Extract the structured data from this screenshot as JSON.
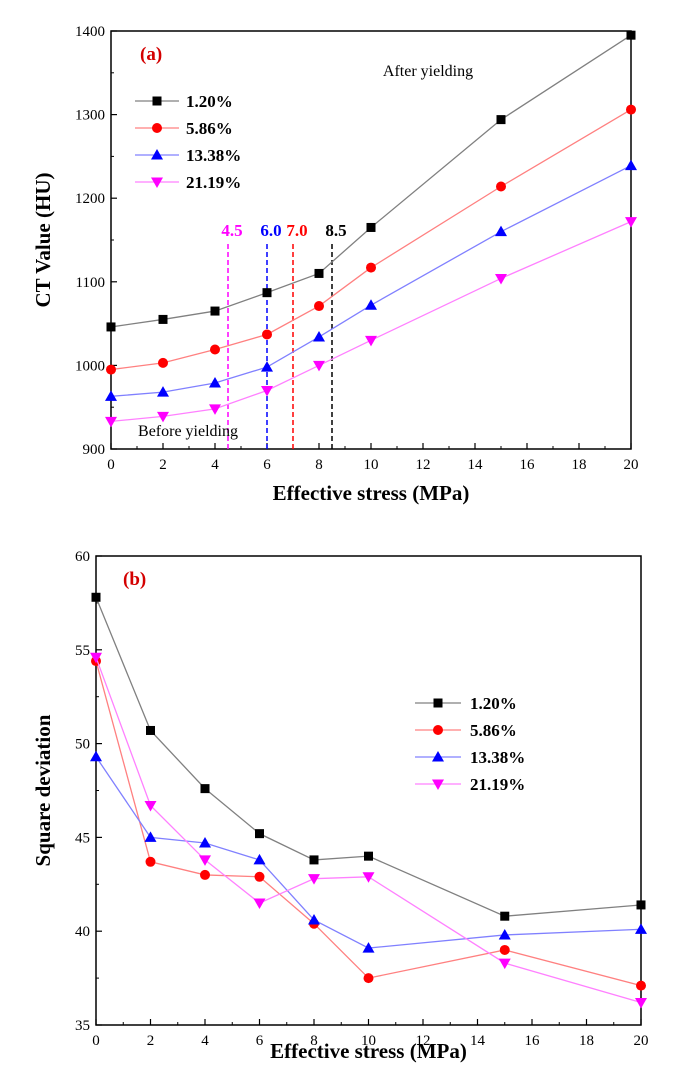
{
  "chart_data": [
    {
      "type": "line",
      "panel_label": "(a)",
      "xlabel": "Effective stress (MPa)",
      "ylabel": "CT Value (HU)",
      "xlim": [
        0,
        20
      ],
      "ylim": [
        900,
        1400
      ],
      "xticks": [
        0,
        2,
        4,
        6,
        8,
        10,
        12,
        14,
        16,
        18,
        20
      ],
      "yticks": [
        900,
        1000,
        1100,
        1200,
        1300,
        1400
      ],
      "x": [
        0,
        2,
        4,
        6,
        8,
        10,
        15,
        20
      ],
      "series": [
        {
          "name": "1.20%",
          "color": "#000000",
          "line_color": "#808080",
          "marker": "square",
          "values": [
            1046,
            1055,
            1065,
            1087,
            1110,
            1165,
            1294,
            1395
          ]
        },
        {
          "name": "5.86%",
          "color": "#ff0000",
          "line_color": "#ff8080",
          "marker": "circle",
          "values": [
            995,
            1003,
            1019,
            1037,
            1071,
            1117,
            1214,
            1306
          ]
        },
        {
          "name": "13.38%",
          "color": "#0000ff",
          "line_color": "#8080ff",
          "marker": "triangle-up",
          "values": [
            963,
            968,
            979,
            998,
            1034,
            1072,
            1160,
            1239
          ]
        },
        {
          "name": "21.19%",
          "color": "#ff00ff",
          "line_color": "#ff80ff",
          "marker": "triangle-down",
          "values": [
            933,
            939,
            948,
            970,
            1000,
            1030,
            1104,
            1172
          ]
        }
      ],
      "vlines": [
        {
          "x": 4.5,
          "label": "4.5",
          "color": "#ff00ff"
        },
        {
          "x": 6.0,
          "label": "6.0",
          "color": "#0000ff"
        },
        {
          "x": 7.0,
          "label": "7.0",
          "color": "#ff0000"
        },
        {
          "x": 8.5,
          "label": "8.5",
          "color": "#000000"
        }
      ],
      "annotations": {
        "after": "After yielding",
        "before": "Before yielding"
      },
      "legend_position": "top-left"
    },
    {
      "type": "line",
      "panel_label": "(b)",
      "xlabel": "Effective stress (MPa)",
      "ylabel": "Square deviation",
      "xlim": [
        0,
        20
      ],
      "ylim": [
        35,
        60
      ],
      "xticks": [
        0,
        2,
        4,
        6,
        8,
        10,
        12,
        14,
        16,
        18,
        20
      ],
      "yticks": [
        35,
        40,
        45,
        50,
        55,
        60
      ],
      "x": [
        0,
        2,
        4,
        6,
        8,
        10,
        15,
        20
      ],
      "series": [
        {
          "name": "1.20%",
          "color": "#000000",
          "line_color": "#808080",
          "marker": "square",
          "values": [
            57.8,
            50.7,
            47.6,
            45.2,
            43.8,
            44.0,
            40.8,
            41.4
          ]
        },
        {
          "name": "5.86%",
          "color": "#ff0000",
          "line_color": "#ff8080",
          "marker": "circle",
          "values": [
            54.4,
            43.7,
            43.0,
            42.9,
            40.4,
            37.5,
            39.0,
            37.1
          ]
        },
        {
          "name": "13.38%",
          "color": "#0000ff",
          "line_color": "#8080ff",
          "marker": "triangle-up",
          "values": [
            49.3,
            45.0,
            44.7,
            43.8,
            40.6,
            39.1,
            39.8,
            40.1
          ]
        },
        {
          "name": "21.19%",
          "color": "#ff00ff",
          "line_color": "#ff80ff",
          "marker": "triangle-down",
          "values": [
            54.6,
            46.7,
            43.8,
            41.5,
            42.8,
            42.9,
            38.3,
            36.2
          ]
        }
      ],
      "legend_position": "right"
    }
  ]
}
